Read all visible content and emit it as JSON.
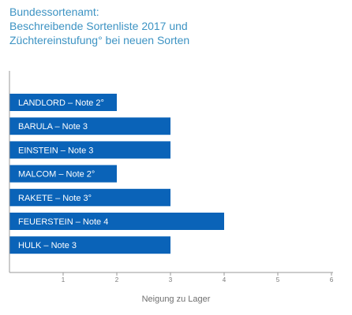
{
  "title_lines": [
    "Bundessortenamt:",
    "Beschreibende Sortenliste 2017 und",
    "Züchtereinstufung° bei neuen Sorten"
  ],
  "colors": {
    "bar": "#0a63b8",
    "title": "#3d93c3",
    "bar_text": "#ffffff",
    "axis": "#9a9a9a"
  },
  "chart_data": {
    "type": "bar",
    "orientation": "horizontal",
    "title": "Bundessortenamt: Beschreibende Sortenliste 2017 und Züchtereinstufung° bei neuen Sorten",
    "categories": [
      "LANDLORD – Note 2°",
      "BARULA – Note 3",
      "EINSTEIN – Note 3",
      "MALCOM – Note 2°",
      "RAKETE – Note 3°",
      "FEUERSTEIN – Note 4",
      "HULK – Note 3"
    ],
    "values": [
      2,
      3,
      3,
      2,
      3,
      4,
      3
    ],
    "xlabel": "Neigung zu Lager",
    "ylabel": "",
    "xlim": [
      0,
      6
    ],
    "xticks": [
      "1",
      "2",
      "3",
      "4",
      "5",
      "6"
    ],
    "grid": false,
    "legend": "none"
  }
}
